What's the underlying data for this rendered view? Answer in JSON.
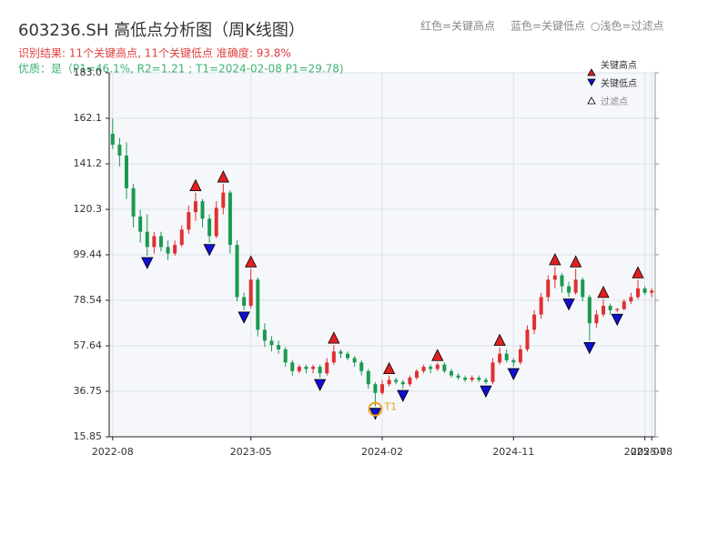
{
  "chart_data": {
    "type": "candlestick",
    "title": "603236.SH 高低点分析图（周K线图）",
    "header_legend": [
      "红色=关键高点",
      "蓝色=关键低点",
      "○浅色=过滤点"
    ],
    "result_line": "识别结果: 11个关键高点, 11个关键低点   准确度: 93.8%",
    "quality_line": "优质：是（P1=46.1%, R2=1.21 ; T1=2024-02-08 P1=29.78)",
    "up_color": "#e03030",
    "down_color": "#1a9a50",
    "grid": true,
    "ylim": [
      15.85,
      183.0
    ],
    "yticks": [
      15.85,
      36.75,
      57.64,
      78.54,
      99.44,
      120.3,
      141.2,
      162.1,
      {
        "value": 183.0,
        "label": "183.0"
      }
    ],
    "categories": [
      "2022-08",
      null,
      null,
      null,
      null,
      null,
      null,
      null,
      null,
      null,
      null,
      null,
      null,
      null,
      null,
      null,
      null,
      null,
      null,
      null,
      "2023-05",
      null,
      null,
      null,
      null,
      null,
      null,
      null,
      null,
      null,
      null,
      null,
      null,
      null,
      null,
      null,
      null,
      null,
      null,
      "2024-02",
      null,
      null,
      null,
      null,
      null,
      null,
      null,
      null,
      null,
      null,
      null,
      null,
      null,
      null,
      null,
      null,
      null,
      null,
      "2024-11",
      null,
      null,
      null,
      null,
      null,
      null,
      null,
      null,
      null,
      null,
      null,
      null,
      null,
      null,
      null,
      null,
      null,
      null,
      "2025-07",
      "2025-08"
    ],
    "ohlc": [
      [
        155,
        162,
        148,
        150
      ],
      [
        150,
        153,
        140,
        145
      ],
      [
        145,
        151,
        125,
        130
      ],
      [
        130,
        132,
        112,
        117
      ],
      [
        117,
        120,
        105,
        110
      ],
      [
        110,
        118,
        99,
        103
      ],
      [
        103,
        110,
        100,
        108
      ],
      [
        108,
        110,
        101,
        103
      ],
      [
        103,
        106,
        97,
        100
      ],
      [
        100,
        106,
        99,
        104
      ],
      [
        104,
        113,
        103,
        111
      ],
      [
        111,
        122,
        109,
        119
      ],
      [
        119,
        128,
        115,
        124
      ],
      [
        124,
        125,
        112,
        116
      ],
      [
        116,
        118,
        105,
        108
      ],
      [
        108,
        124,
        107,
        121
      ],
      [
        121,
        132,
        118,
        128
      ],
      [
        128,
        129,
        100,
        104
      ],
      [
        104,
        106,
        78,
        80
      ],
      [
        80,
        82,
        74,
        76
      ],
      [
        76,
        93,
        75,
        88
      ],
      [
        88,
        89,
        62,
        65
      ],
      [
        65,
        68,
        57,
        60
      ],
      [
        60,
        62,
        55,
        58
      ],
      [
        58,
        60,
        54,
        56
      ],
      [
        56,
        57,
        48,
        50
      ],
      [
        50,
        51,
        44,
        46
      ],
      [
        46,
        49,
        45,
        48
      ],
      [
        48,
        49,
        45,
        47
      ],
      [
        47,
        49,
        45,
        48
      ],
      [
        48,
        49,
        43,
        45
      ],
      [
        45,
        52,
        44,
        50
      ],
      [
        50,
        58,
        49,
        55
      ],
      [
        55,
        56,
        52,
        54
      ],
      [
        54,
        55,
        51,
        52
      ],
      [
        52,
        53,
        48,
        50
      ],
      [
        50,
        51,
        44,
        46
      ],
      [
        46,
        47,
        38,
        40
      ],
      [
        40,
        41,
        29.78,
        36
      ],
      [
        36,
        42,
        35,
        40
      ],
      [
        40,
        44,
        39,
        42
      ],
      [
        42,
        43,
        40,
        41
      ],
      [
        41,
        42,
        38,
        40
      ],
      [
        40,
        44,
        39,
        43
      ],
      [
        43,
        47,
        42,
        46
      ],
      [
        46,
        49,
        45,
        48
      ],
      [
        48,
        49,
        45,
        47
      ],
      [
        47,
        50,
        46,
        49
      ],
      [
        49,
        50,
        45,
        46
      ],
      [
        46,
        47,
        43,
        44
      ],
      [
        44,
        45,
        42,
        43
      ],
      [
        43,
        44,
        41,
        42
      ],
      [
        42,
        44,
        41,
        43
      ],
      [
        43,
        44,
        41,
        42
      ],
      [
        42,
        43,
        40,
        41
      ],
      [
        41,
        52,
        40,
        50
      ],
      [
        50,
        57,
        49,
        54
      ],
      [
        54,
        56,
        50,
        51
      ],
      [
        51,
        52,
        48,
        50
      ],
      [
        50,
        58,
        49,
        56
      ],
      [
        56,
        67,
        55,
        65
      ],
      [
        65,
        74,
        63,
        72
      ],
      [
        72,
        82,
        70,
        80
      ],
      [
        80,
        90,
        78,
        88
      ],
      [
        88,
        94,
        84,
        90
      ],
      [
        90,
        91,
        82,
        85
      ],
      [
        85,
        87,
        80,
        82
      ],
      [
        82,
        93,
        81,
        88
      ],
      [
        88,
        89,
        78,
        80
      ],
      [
        80,
        81,
        60,
        68
      ],
      [
        68,
        74,
        66,
        72
      ],
      [
        72,
        79,
        71,
        76
      ],
      [
        76,
        77,
        72,
        74
      ],
      [
        74,
        75,
        73,
        74.5
      ],
      [
        74.5,
        79,
        74,
        78
      ],
      [
        78,
        82,
        77,
        80
      ],
      [
        80,
        88,
        79,
        84
      ],
      [
        84,
        85,
        81,
        82
      ],
      [
        82,
        84,
        80,
        83
      ]
    ],
    "key_highs": {
      "name": "关键高点",
      "color": "#e02020",
      "values": [
        null,
        null,
        null,
        null,
        null,
        null,
        null,
        null,
        null,
        null,
        null,
        null,
        128,
        null,
        null,
        null,
        132,
        null,
        null,
        null,
        93,
        null,
        null,
        null,
        null,
        null,
        null,
        null,
        null,
        null,
        null,
        null,
        58,
        null,
        null,
        null,
        null,
        null,
        null,
        null,
        44,
        null,
        null,
        null,
        null,
        null,
        null,
        50,
        null,
        null,
        null,
        null,
        null,
        null,
        null,
        null,
        57,
        null,
        null,
        null,
        null,
        null,
        null,
        null,
        94,
        null,
        null,
        93,
        null,
        null,
        null,
        79,
        null,
        null,
        null,
        null,
        88,
        null,
        null
      ]
    },
    "key_lows": {
      "name": "关键低点",
      "color": "#1010d0",
      "values": [
        null,
        null,
        null,
        null,
        null,
        99,
        null,
        null,
        null,
        null,
        null,
        null,
        null,
        null,
        105,
        null,
        null,
        null,
        null,
        74,
        null,
        null,
        null,
        null,
        null,
        null,
        null,
        null,
        null,
        null,
        43,
        null,
        null,
        null,
        null,
        null,
        null,
        null,
        29.78,
        null,
        null,
        null,
        38,
        null,
        null,
        null,
        null,
        null,
        null,
        null,
        null,
        null,
        null,
        null,
        40,
        null,
        null,
        null,
        48,
        null,
        null,
        null,
        null,
        null,
        null,
        null,
        80,
        null,
        null,
        60,
        null,
        null,
        null,
        73,
        null,
        null,
        null,
        null,
        null
      ]
    },
    "filtered": {
      "name": "过滤点",
      "color": "#ffffff"
    },
    "t1": {
      "label": "T1",
      "color": "#f0a020",
      "values": [
        null,
        null,
        null,
        null,
        null,
        null,
        null,
        null,
        null,
        null,
        null,
        null,
        null,
        null,
        null,
        null,
        null,
        null,
        null,
        null,
        null,
        null,
        null,
        null,
        null,
        null,
        null,
        null,
        null,
        null,
        null,
        null,
        null,
        null,
        null,
        null,
        null,
        null,
        29.78,
        null,
        null,
        null,
        null,
        null,
        null,
        null,
        null,
        null,
        null,
        null,
        null,
        null,
        null,
        null,
        null,
        null,
        null,
        null,
        null,
        null,
        null,
        null,
        null,
        null,
        null,
        null,
        null,
        null,
        null,
        null,
        null,
        null,
        null,
        null,
        null,
        null,
        null,
        null,
        null
      ]
    }
  }
}
